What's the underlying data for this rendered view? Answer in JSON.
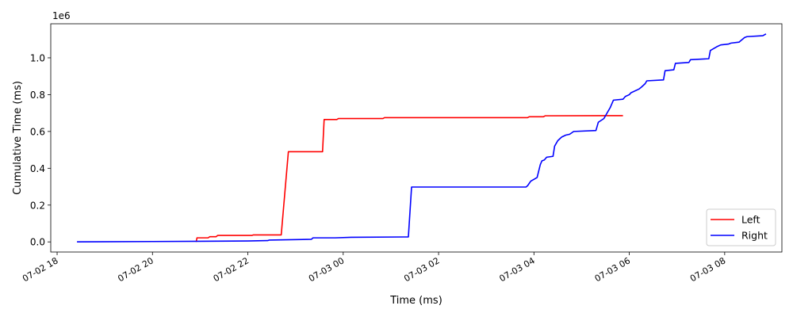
{
  "chart_data": {
    "type": "line",
    "title": "",
    "xlabel": "Time (ms)",
    "ylabel": "Cumulative Time (ms)",
    "y_offset_text": "1e6",
    "xlim": [
      "2026-07-02T17:52",
      "2026-07-03T09:12"
    ],
    "ylim": [
      -55000,
      1185000
    ],
    "x_ticks": [
      {
        "value": "2026-07-02T18:00",
        "label": "07-02 18"
      },
      {
        "value": "2026-07-02T20:00",
        "label": "07-02 20"
      },
      {
        "value": "2026-07-02T22:00",
        "label": "07-02 22"
      },
      {
        "value": "2026-07-03T00:00",
        "label": "07-03 00"
      },
      {
        "value": "2026-07-03T02:00",
        "label": "07-03 02"
      },
      {
        "value": "2026-07-03T04:00",
        "label": "07-03 04"
      },
      {
        "value": "2026-07-03T06:00",
        "label": "07-03 06"
      },
      {
        "value": "2026-07-03T08:00",
        "label": "07-03 08"
      }
    ],
    "y_ticks": [
      {
        "value": 0,
        "label": "0.0"
      },
      {
        "value": 200000,
        "label": "0.2"
      },
      {
        "value": 400000,
        "label": "0.4"
      },
      {
        "value": 600000,
        "label": "0.6"
      },
      {
        "value": 800000,
        "label": "0.8"
      },
      {
        "value": 1000000,
        "label": "1.0"
      }
    ],
    "grid": false,
    "legend_position": "lower-right",
    "series": [
      {
        "name": "Left",
        "color": "#ff0000",
        "x": [
          "2026-07-02T20:55",
          "2026-07-02T20:56",
          "2026-07-02T21:10",
          "2026-07-02T21:12",
          "2026-07-02T21:20",
          "2026-07-02T21:22",
          "2026-07-02T22:05",
          "2026-07-02T22:07",
          "2026-07-02T22:42",
          "2026-07-02T22:51",
          "2026-07-02T23:34",
          "2026-07-02T23:36",
          "2026-07-02T23:52",
          "2026-07-02T23:54",
          "2026-07-03T00:50",
          "2026-07-03T00:52",
          "2026-07-03T03:52",
          "2026-07-03T03:54",
          "2026-07-03T04:12",
          "2026-07-03T04:14",
          "2026-07-03T05:52"
        ],
        "y": [
          0,
          22000,
          22000,
          28000,
          28000,
          35000,
          35000,
          38000,
          38000,
          490000,
          490000,
          665000,
          665000,
          670000,
          670000,
          675000,
          675000,
          680000,
          680000,
          685000,
          686000
        ]
      },
      {
        "name": "Right",
        "color": "#0000ff",
        "x": [
          "2026-07-02T18:25",
          "2026-07-02T20:00",
          "2026-07-02T22:00",
          "2026-07-02T22:25",
          "2026-07-02T22:27",
          "2026-07-02T22:55",
          "2026-07-02T23:20",
          "2026-07-02T23:22",
          "2026-07-02T23:50",
          "2026-07-03T00:10",
          "2026-07-03T01:22",
          "2026-07-03T01:26",
          "2026-07-03T03:50",
          "2026-07-03T03:52",
          "2026-07-03T03:56",
          "2026-07-03T04:00",
          "2026-07-03T04:04",
          "2026-07-03T04:08",
          "2026-07-03T04:10",
          "2026-07-03T04:13",
          "2026-07-03T04:16",
          "2026-07-03T04:24",
          "2026-07-03T04:26",
          "2026-07-03T04:30",
          "2026-07-03T04:35",
          "2026-07-03T04:40",
          "2026-07-03T04:45",
          "2026-07-03T04:50",
          "2026-07-03T05:18",
          "2026-07-03T05:21",
          "2026-07-03T05:28",
          "2026-07-03T05:32",
          "2026-07-03T05:36",
          "2026-07-03T05:40",
          "2026-07-03T05:52",
          "2026-07-03T05:55",
          "2026-07-03T06:00",
          "2026-07-03T06:02",
          "2026-07-03T06:12",
          "2026-07-03T06:15",
          "2026-07-03T06:20",
          "2026-07-03T06:22",
          "2026-07-03T06:43",
          "2026-07-03T06:45",
          "2026-07-03T06:56",
          "2026-07-03T06:58",
          "2026-07-03T07:15",
          "2026-07-03T07:17",
          "2026-07-03T07:40",
          "2026-07-03T07:42",
          "2026-07-03T07:50",
          "2026-07-03T07:55",
          "2026-07-03T08:05",
          "2026-07-03T08:08",
          "2026-07-03T08:18",
          "2026-07-03T08:25",
          "2026-07-03T08:28",
          "2026-07-03T08:48",
          "2026-07-03T08:52"
        ],
        "y": [
          0,
          2000,
          5000,
          7000,
          10000,
          12000,
          14000,
          22000,
          22000,
          25000,
          27000,
          298000,
          298000,
          305000,
          330000,
          340000,
          350000,
          420000,
          440000,
          445000,
          460000,
          465000,
          520000,
          550000,
          570000,
          580000,
          585000,
          600000,
          605000,
          650000,
          670000,
          700000,
          730000,
          770000,
          775000,
          790000,
          800000,
          810000,
          830000,
          840000,
          860000,
          875000,
          880000,
          930000,
          935000,
          970000,
          975000,
          990000,
          995000,
          1040000,
          1060000,
          1070000,
          1075000,
          1080000,
          1085000,
          1110000,
          1115000,
          1120000,
          1130000
        ]
      }
    ]
  }
}
